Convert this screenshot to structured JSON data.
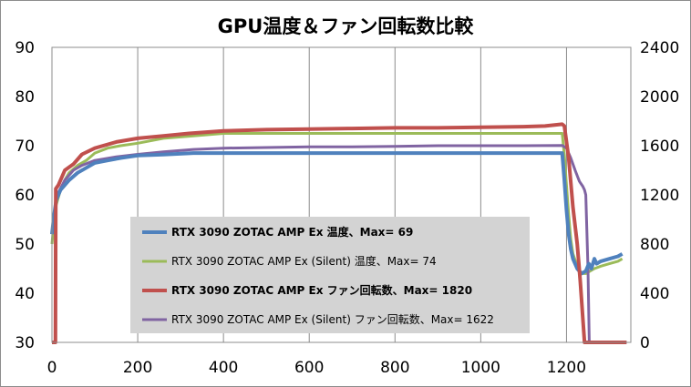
{
  "chart_data": {
    "type": "line",
    "title": "GPU温度＆ファン回転数比較",
    "x_ticks": [
      "0",
      "200",
      "400",
      "600",
      "800",
      "1000",
      "1200"
    ],
    "xlim": [
      0,
      1350
    ],
    "y_left_ticks": [
      "30",
      "40",
      "50",
      "60",
      "70",
      "80",
      "90"
    ],
    "ylim_left": [
      30,
      90
    ],
    "y_right_ticks": [
      "0",
      "400",
      "800",
      "1200",
      "1600",
      "2000",
      "2400"
    ],
    "ylim_right": [
      0,
      2400
    ],
    "grid": "vertical only",
    "legend_position": "center-left, inside plot",
    "series": [
      {
        "name": "RTX 3090 ZOTAC AMP Ex 温度、Max= 69",
        "axis": "left",
        "color": "#4f81bd",
        "bold": true,
        "points": [
          [
            0,
            52
          ],
          [
            5,
            56
          ],
          [
            10,
            59
          ],
          [
            20,
            61
          ],
          [
            30,
            62
          ],
          [
            40,
            63
          ],
          [
            60,
            64.5
          ],
          [
            80,
            65.5
          ],
          [
            100,
            66.5
          ],
          [
            130,
            67
          ],
          [
            160,
            67.5
          ],
          [
            200,
            68
          ],
          [
            260,
            68.2
          ],
          [
            330,
            68.5
          ],
          [
            400,
            68.5
          ],
          [
            600,
            68.5
          ],
          [
            800,
            68.5
          ],
          [
            1000,
            68.5
          ],
          [
            1150,
            68.5
          ],
          [
            1190,
            68.5
          ],
          [
            1195,
            63
          ],
          [
            1200,
            57
          ],
          [
            1205,
            52
          ],
          [
            1210,
            49
          ],
          [
            1215,
            47
          ],
          [
            1225,
            45
          ],
          [
            1235,
            44
          ],
          [
            1245,
            44.5
          ],
          [
            1252,
            46
          ],
          [
            1258,
            45
          ],
          [
            1265,
            47
          ],
          [
            1270,
            46
          ],
          [
            1280,
            46.5
          ],
          [
            1300,
            47
          ],
          [
            1320,
            47.5
          ],
          [
            1330,
            48
          ]
        ]
      },
      {
        "name": "RTX 3090 ZOTAC AMP Ex (Silent) 温度、Max= 74",
        "axis": "left",
        "color": "#9bbb59",
        "bold": false,
        "points": [
          [
            0,
            50
          ],
          [
            5,
            55
          ],
          [
            10,
            58
          ],
          [
            20,
            61
          ],
          [
            30,
            63
          ],
          [
            40,
            64.5
          ],
          [
            60,
            66
          ],
          [
            80,
            67
          ],
          [
            100,
            68.5
          ],
          [
            130,
            69.5
          ],
          [
            160,
            70
          ],
          [
            200,
            70.5
          ],
          [
            260,
            71.5
          ],
          [
            330,
            72
          ],
          [
            400,
            72.5
          ],
          [
            500,
            72.5
          ],
          [
            600,
            72.5
          ],
          [
            800,
            72.5
          ],
          [
            1000,
            72.5
          ],
          [
            1150,
            72.5
          ],
          [
            1190,
            72.5
          ],
          [
            1195,
            68
          ],
          [
            1200,
            62
          ],
          [
            1205,
            56
          ],
          [
            1210,
            51
          ],
          [
            1215,
            48
          ],
          [
            1225,
            45.5
          ],
          [
            1235,
            44
          ],
          [
            1245,
            44
          ],
          [
            1255,
            44.5
          ],
          [
            1265,
            45
          ],
          [
            1280,
            45.5
          ],
          [
            1300,
            46
          ],
          [
            1320,
            46.5
          ],
          [
            1330,
            47
          ]
        ]
      },
      {
        "name": "RTX 3090 ZOTAC AMP Ex ファン回転数、Max= 1820",
        "axis": "right",
        "color": "#c0504d",
        "bold": true,
        "points": [
          [
            0,
            0
          ],
          [
            8,
            0
          ],
          [
            9,
            1250
          ],
          [
            15,
            1280
          ],
          [
            30,
            1400
          ],
          [
            50,
            1450
          ],
          [
            70,
            1530
          ],
          [
            100,
            1580
          ],
          [
            150,
            1630
          ],
          [
            200,
            1660
          ],
          [
            260,
            1680
          ],
          [
            320,
            1700
          ],
          [
            400,
            1720
          ],
          [
            500,
            1730
          ],
          [
            600,
            1735
          ],
          [
            700,
            1740
          ],
          [
            800,
            1745
          ],
          [
            900,
            1745
          ],
          [
            1000,
            1750
          ],
          [
            1100,
            1755
          ],
          [
            1150,
            1760
          ],
          [
            1190,
            1775
          ],
          [
            1195,
            1760
          ],
          [
            1205,
            1500
          ],
          [
            1215,
            1100
          ],
          [
            1225,
            800
          ],
          [
            1232,
            500
          ],
          [
            1238,
            200
          ],
          [
            1242,
            0
          ],
          [
            1340,
            0
          ]
        ]
      },
      {
        "name": "RTX 3090 ZOTAC AMP Ex (Silent) ファン回転数、Max= 1622",
        "axis": "right",
        "color": "#8064a2",
        "bold": false,
        "points": [
          [
            0,
            0
          ],
          [
            8,
            0
          ],
          [
            9,
            1180
          ],
          [
            15,
            1220
          ],
          [
            30,
            1320
          ],
          [
            50,
            1400
          ],
          [
            70,
            1440
          ],
          [
            100,
            1480
          ],
          [
            150,
            1510
          ],
          [
            200,
            1530
          ],
          [
            260,
            1550
          ],
          [
            330,
            1570
          ],
          [
            400,
            1580
          ],
          [
            500,
            1585
          ],
          [
            600,
            1590
          ],
          [
            700,
            1590
          ],
          [
            800,
            1595
          ],
          [
            900,
            1600
          ],
          [
            1000,
            1600
          ],
          [
            1100,
            1600
          ],
          [
            1190,
            1602
          ],
          [
            1200,
            1580
          ],
          [
            1210,
            1500
          ],
          [
            1220,
            1400
          ],
          [
            1230,
            1310
          ],
          [
            1238,
            1270
          ],
          [
            1242,
            1240
          ],
          [
            1245,
            1200
          ],
          [
            1250,
            600
          ],
          [
            1253,
            0
          ],
          [
            1340,
            0
          ]
        ]
      }
    ]
  }
}
